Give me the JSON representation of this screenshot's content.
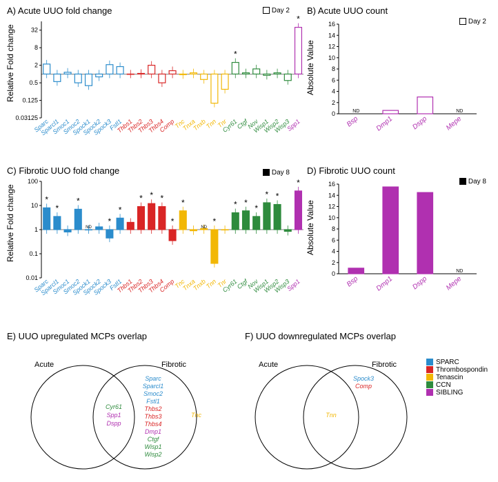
{
  "colors": {
    "SPARC": "#2b8ccc",
    "Thrombospondin": "#d92525",
    "Tenascin": "#f2b705",
    "CCN": "#2e8b3d",
    "SIBLING": "#b030b0"
  },
  "panelA": {
    "title": "A) Acute UUO fold change",
    "legend": "Day 2",
    "ylabel": "Relative Fold change",
    "ylim": [
      0.03125,
      64
    ],
    "yticks": [
      0.03125,
      0.125,
      0.5,
      2,
      8,
      32
    ],
    "genes": [
      {
        "n": "Sparc",
        "fam": "SPARC",
        "v": 2.2
      },
      {
        "n": "Sparcl1",
        "fam": "SPARC",
        "v": 0.55
      },
      {
        "n": "Smoc1",
        "fam": "SPARC",
        "v": 1.15
      },
      {
        "n": "Smoc2",
        "fam": "SPARC",
        "v": 0.5
      },
      {
        "n": "Spock1",
        "fam": "SPARC",
        "v": 0.4
      },
      {
        "n": "Spock2",
        "fam": "SPARC",
        "v": 0.8
      },
      {
        "n": "Spock3",
        "fam": "SPARC",
        "v": 2.1
      },
      {
        "n": "Fstl1",
        "fam": "SPARC",
        "v": 1.8
      },
      {
        "n": "Thbs1",
        "fam": "Thrombospondin",
        "v": 1.0
      },
      {
        "n": "Thbs2",
        "fam": "Thrombospondin",
        "v": 1.05
      },
      {
        "n": "Thbs3",
        "fam": "Thrombospondin",
        "v": 2.0
      },
      {
        "n": "Thbs4",
        "fam": "Thrombospondin",
        "v": 0.5
      },
      {
        "n": "Comp",
        "fam": "Thrombospondin",
        "v": 1.3
      },
      {
        "n": "Tnc",
        "fam": "Tenascin",
        "v": 0.95
      },
      {
        "n": "Tnxa",
        "fam": "Tenascin",
        "v": 1.1
      },
      {
        "n": "Tnxb",
        "fam": "Tenascin",
        "v": 0.65
      },
      {
        "n": "Tnn",
        "fam": "Tenascin",
        "v": 0.1
      },
      {
        "n": "Tnr",
        "fam": "Tenascin",
        "v": 0.3
      },
      {
        "n": "Cyr61",
        "fam": "CCN",
        "v": 2.5,
        "star": 1
      },
      {
        "n": "Ctgf",
        "fam": "CCN",
        "v": 1.1
      },
      {
        "n": "Nov",
        "fam": "CCN",
        "v": 1.5
      },
      {
        "n": "Wisp1",
        "fam": "CCN",
        "v": 0.9
      },
      {
        "n": "Wisp2",
        "fam": "CCN",
        "v": 1.1
      },
      {
        "n": "Wisp3",
        "fam": "CCN",
        "v": 0.6
      },
      {
        "n": "Spp1",
        "fam": "SIBLING",
        "v": 40,
        "star": 1
      }
    ]
  },
  "panelB": {
    "title": "B) Acute UUO count",
    "legend": "Day 2",
    "ylabel": "Absolute Value",
    "ylim": [
      0,
      16
    ],
    "yticks": [
      0,
      2,
      4,
      6,
      8,
      10,
      12,
      14,
      16
    ],
    "genes": [
      {
        "n": "Bsp",
        "v": 0,
        "nd": true
      },
      {
        "n": "Dmp1",
        "v": 0.6
      },
      {
        "n": "Dspp",
        "v": 3.0
      },
      {
        "n": "Mepe",
        "v": 0,
        "nd": true
      }
    ]
  },
  "panelC": {
    "title": "C) Fibrotic UUO fold change",
    "legend": "Day 8",
    "ylabel": "Relative Fold change",
    "ylim": [
      0.01,
      100
    ],
    "yticks": [
      0.01,
      0.1,
      1,
      10,
      100
    ],
    "genes": [
      {
        "n": "Sparc",
        "fam": "SPARC",
        "v": 8,
        "star": 1
      },
      {
        "n": "Sparcl1",
        "fam": "SPARC",
        "v": 3.5,
        "star": 1
      },
      {
        "n": "Smoc1",
        "fam": "SPARC",
        "v": 0.8
      },
      {
        "n": "Smoc2",
        "fam": "SPARC",
        "v": 7,
        "star": 1
      },
      {
        "n": "Spock1",
        "fam": "SPARC",
        "v": 1.0,
        "nd": true
      },
      {
        "n": "Spock2",
        "fam": "SPARC",
        "v": 1.3
      },
      {
        "n": "Spock3",
        "fam": "SPARC",
        "v": 0.45,
        "star": 1
      },
      {
        "n": "Fstl1",
        "fam": "SPARC",
        "v": 3.0,
        "star": 1
      },
      {
        "n": "Thbs1",
        "fam": "Thrombospondin",
        "v": 2.0
      },
      {
        "n": "Thbs2",
        "fam": "Thrombospondin",
        "v": 9,
        "star": 1
      },
      {
        "n": "Thbs3",
        "fam": "Thrombospondin",
        "v": 12,
        "star": 1
      },
      {
        "n": "Thbs4",
        "fam": "Thrombospondin",
        "v": 9,
        "star": 1
      },
      {
        "n": "Comp",
        "fam": "Thrombospondin",
        "v": 0.35,
        "star": 1
      },
      {
        "n": "Tnc",
        "fam": "Tenascin",
        "v": 6,
        "star": 1
      },
      {
        "n": "Tnxa",
        "fam": "Tenascin",
        "v": 0.9
      },
      {
        "n": "Tnxb",
        "fam": "Tenascin",
        "v": 1.1,
        "nd": true
      },
      {
        "n": "Tnn",
        "fam": "Tenascin",
        "v": 0.04,
        "star": 1
      },
      {
        "n": "Tnr",
        "fam": "Tenascin",
        "v": 1.0
      },
      {
        "n": "Cyr61",
        "fam": "CCN",
        "v": 5,
        "star": 1
      },
      {
        "n": "Ctgf",
        "fam": "CCN",
        "v": 6,
        "star": 1
      },
      {
        "n": "Nov",
        "fam": "CCN",
        "v": 3.5,
        "star": 1
      },
      {
        "n": "Wisp1",
        "fam": "CCN",
        "v": 13,
        "star": 1
      },
      {
        "n": "Wisp2",
        "fam": "CCN",
        "v": 11,
        "star": 1
      },
      {
        "n": "Wisp3",
        "fam": "CCN",
        "v": 0.85
      },
      {
        "n": "Spp1",
        "fam": "SIBLING",
        "v": 40,
        "star": 1
      }
    ]
  },
  "panelD": {
    "title": "D) Fibrotic UUO count",
    "legend": "Day 8",
    "ylabel": "Absolute Value",
    "ylim": [
      0,
      16
    ],
    "yticks": [
      0,
      2,
      4,
      6,
      8,
      10,
      12,
      14,
      16
    ],
    "genes": [
      {
        "n": "Bsp",
        "v": 1.0
      },
      {
        "n": "Dmp1",
        "v": 15.5
      },
      {
        "n": "Dspp",
        "v": 14.5
      },
      {
        "n": "Mepe",
        "v": 0,
        "nd": true
      }
    ]
  },
  "panelE": {
    "title": "E) UUO upregulated MCPs overlap",
    "left": "Acute",
    "right": "Fibrotic",
    "center": [
      {
        "t": "Cyr61",
        "fam": "CCN"
      },
      {
        "t": "Spp1",
        "fam": "SIBLING"
      },
      {
        "t": "Dspp",
        "fam": "SIBLING"
      }
    ],
    "rightonly": [
      {
        "t": "Sparc",
        "fam": "SPARC"
      },
      {
        "t": "Sparcl1",
        "fam": "SPARC"
      },
      {
        "t": "Smoc2",
        "fam": "SPARC"
      },
      {
        "t": "Fstl1",
        "fam": "SPARC"
      },
      {
        "t": "Thbs2",
        "fam": "Thrombospondin"
      },
      {
        "t": "Thbs3",
        "fam": "Thrombospondin"
      },
      {
        "t": "Thbs4",
        "fam": "Thrombospondin"
      },
      {
        "t": "Dmp1",
        "fam": "SIBLING"
      },
      {
        "t": "Ctgf",
        "fam": "CCN"
      },
      {
        "t": "Wisp1",
        "fam": "CCN"
      },
      {
        "t": "Wisp2",
        "fam": "CCN"
      }
    ],
    "rightedge": [
      {
        "t": "Tnc",
        "fam": "Tenascin"
      }
    ]
  },
  "panelF": {
    "title": "F) UUO downregulated MCPs overlap",
    "left": "Acute",
    "right": "Fibrotic",
    "center": [
      {
        "t": "Tnn",
        "fam": "Tenascin"
      }
    ],
    "rightonly": [
      {
        "t": "Spock3",
        "fam": "SPARC"
      },
      {
        "t": "Comp",
        "fam": "Thrombospondin"
      }
    ]
  },
  "famLegend": [
    {
      "t": "SPARC",
      "c": "#2b8ccc"
    },
    {
      "t": "Thrombospondin",
      "c": "#d92525"
    },
    {
      "t": "Tenascin",
      "c": "#f2b705"
    },
    {
      "t": "CCN",
      "c": "#2e8b3d"
    },
    {
      "t": "SIBLING",
      "c": "#b030b0"
    }
  ]
}
